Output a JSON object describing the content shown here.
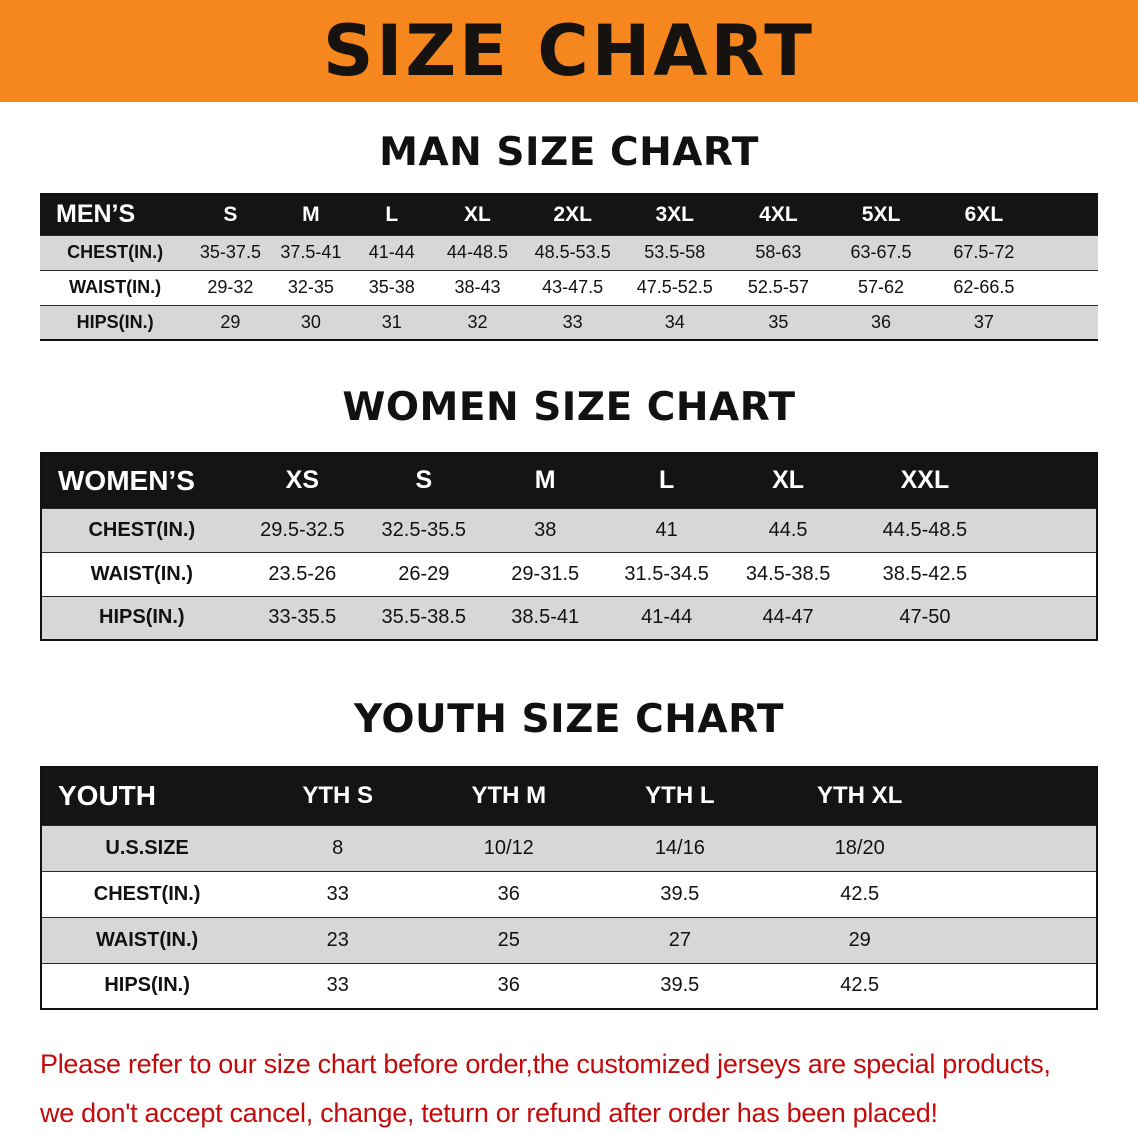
{
  "banner": {
    "title": "SIZE CHART",
    "bg_color": "#f6861e",
    "text_color": "#151210"
  },
  "sections": [
    {
      "id": "men",
      "heading": "MAN SIZE CHART",
      "table": {
        "header": [
          "MEN’S",
          "S",
          "M",
          "L",
          "XL",
          "2XL",
          "3XL",
          "4XL",
          "5XL",
          "6XL"
        ],
        "rows": [
          {
            "label": "CHEST(IN.)",
            "values": [
              "35-37.5",
              "37.5-41",
              "41-44",
              "44-48.5",
              "48.5-53.5",
              "53.5-58",
              "58-63",
              "63-67.5",
              "67.5-72"
            ]
          },
          {
            "label": "WAIST(IN.)",
            "values": [
              "29-32",
              "32-35",
              "35-38",
              "38-43",
              "43-47.5",
              "47.5-52.5",
              "52.5-57",
              "57-62",
              "62-66.5"
            ]
          },
          {
            "label": "HIPS(IN.)",
            "values": [
              "29",
              "30",
              "31",
              "32",
              "33",
              "34",
              "35",
              "36",
              "37"
            ]
          }
        ]
      }
    },
    {
      "id": "women",
      "heading": "WOMEN SIZE CHART",
      "table": {
        "header": [
          "WOMEN’S",
          "XS",
          "S",
          "M",
          "L",
          "XL",
          "XXL"
        ],
        "rows": [
          {
            "label": "CHEST(IN.)",
            "values": [
              "29.5-32.5",
              "32.5-35.5",
              "38",
              "41",
              "44.5",
              "44.5-48.5"
            ]
          },
          {
            "label": "WAIST(IN.)",
            "values": [
              "23.5-26",
              "26-29",
              "29-31.5",
              "31.5-34.5",
              "34.5-38.5",
              "38.5-42.5"
            ]
          },
          {
            "label": "HIPS(IN.)",
            "values": [
              "33-35.5",
              "35.5-38.5",
              "38.5-41",
              "41-44",
              "44-47",
              "47-50"
            ]
          }
        ]
      }
    },
    {
      "id": "youth",
      "heading": "YOUTH SIZE CHART",
      "table": {
        "header": [
          "YOUTH",
          "YTH S",
          "YTH M",
          "YTH L",
          "YTH XL"
        ],
        "rows": [
          {
            "label": "U.S.SIZE",
            "values": [
              "8",
              "10/12",
              "14/16",
              "18/20"
            ]
          },
          {
            "label": "CHEST(IN.)",
            "values": [
              "33",
              "36",
              "39.5",
              "42.5"
            ]
          },
          {
            "label": "WAIST(IN.)",
            "values": [
              "23",
              "25",
              "27",
              "29"
            ]
          },
          {
            "label": "HIPS(IN.)",
            "values": [
              "33",
              "36",
              "39.5",
              "42.5"
            ]
          }
        ]
      }
    }
  ],
  "disclaimer": {
    "text_color": "#c30b0b",
    "lines": [
      "Please refer to our size chart before order,the customized jerseys are special products,",
      "we don't accept cancel, change, teturn or refund after order has been placed!"
    ]
  }
}
